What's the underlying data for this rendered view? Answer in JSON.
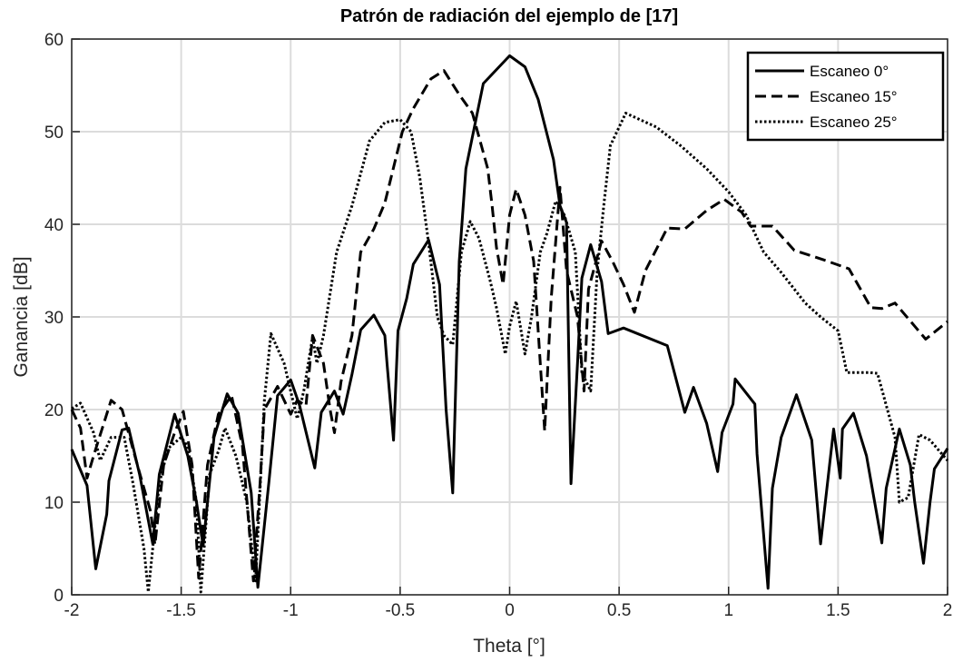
{
  "chart_data": {
    "type": "line",
    "title": "Patrón de radiación del ejemplo de [17]",
    "xlabel": "Theta [°]",
    "ylabel": "Ganancia [dB]",
    "xlim": [
      -2,
      2
    ],
    "xticks": [
      -2,
      -1.5,
      -1,
      -0.5,
      0,
      0.5,
      1,
      1.5,
      2
    ],
    "ylim": [
      0,
      60
    ],
    "yticks": [
      0,
      10,
      20,
      30,
      40,
      50,
      60
    ],
    "grid": true,
    "legend": "upper right",
    "series": [
      {
        "name": "Escaneo 0°",
        "color": "#000000",
        "linestyle": "solid",
        "x": [
          -2,
          -1.93,
          -1.89,
          -1.84,
          -1.83,
          -1.77,
          -1.74,
          -1.69,
          -1.63,
          -1.6,
          -1.53,
          -1.47,
          -1.43,
          -1.4,
          -1.35,
          -1.29,
          -1.24,
          -1.18,
          -1.15,
          -1.1,
          -1.06,
          -1,
          -0.96,
          -0.89,
          -0.86,
          -0.8,
          -0.76,
          -0.72,
          -0.68,
          -0.62,
          -0.57,
          -0.56,
          -0.53,
          -0.51,
          -0.47,
          -0.44,
          -0.37,
          -0.32,
          -0.29,
          -0.26,
          -0.23,
          -0.2,
          -0.12,
          0,
          0.07,
          0.13,
          0.2,
          0.23,
          0.26,
          0.28,
          0.31,
          0.33,
          0.37,
          0.42,
          0.45,
          0.52,
          0.72,
          0.8,
          0.84,
          0.9,
          0.95,
          0.97,
          1.02,
          1.03,
          1.12,
          1.13,
          1.18,
          1.2,
          1.24,
          1.31,
          1.38,
          1.42,
          1.48,
          1.51,
          1.52,
          1.57,
          1.63,
          1.7,
          1.72,
          1.78,
          1.83,
          1.85,
          1.89,
          1.92,
          1.94,
          2
        ],
        "values": [
          15.7,
          11.8,
          2.8,
          8.7,
          12.3,
          17.8,
          18,
          13,
          5.5,
          13,
          19.5,
          15,
          10,
          5.3,
          17,
          21.7,
          19.6,
          11,
          0.8,
          12,
          21.5,
          23.2,
          20.5,
          13.7,
          19.7,
          22,
          19.5,
          23.8,
          28.6,
          30.2,
          28,
          25,
          16.7,
          28.5,
          32,
          35.7,
          38.3,
          33.5,
          20,
          11,
          36,
          46,
          55.2,
          58.2,
          57,
          53.5,
          47,
          42,
          40.2,
          12,
          25,
          34.2,
          37.8,
          33.8,
          28.2,
          28.8,
          26.9,
          19.7,
          22.4,
          18.5,
          13.3,
          17.5,
          20.6,
          23.3,
          20.6,
          15.2,
          0.7,
          11.5,
          17,
          21.6,
          16.7,
          5.5,
          17.9,
          12.6,
          17.9,
          19.6,
          15,
          5.6,
          11.5,
          17.9,
          14,
          10,
          3.4,
          10,
          13.6,
          15.8
        ]
      },
      {
        "name": "Escaneo 15°",
        "color": "#000000",
        "linestyle": "dashed",
        "x": [
          -2,
          -1.96,
          -1.93,
          -1.9,
          -1.82,
          -1.77,
          -1.7,
          -1.64,
          -1.62,
          -1.58,
          -1.53,
          -1.49,
          -1.45,
          -1.42,
          -1.38,
          -1.33,
          -1.27,
          -1.22,
          -1.17,
          -1.14,
          -1.12,
          -1.06,
          -1,
          -0.97,
          -0.93,
          -0.9,
          -0.85,
          -0.82,
          -0.8,
          -0.77,
          -0.72,
          -0.68,
          -0.62,
          -0.57,
          -0.49,
          -0.44,
          -0.36,
          -0.3,
          -0.23,
          -0.17,
          -0.1,
          -0.08,
          -0.06,
          -0.03,
          0,
          0.03,
          0.07,
          0.11,
          0.16,
          0.19,
          0.23,
          0.26,
          0.31,
          0.34,
          0.36,
          0.42,
          0.47,
          0.52,
          0.57,
          0.62,
          0.72,
          0.8,
          0.9,
          0.98,
          1.06,
          1.1,
          1.2,
          1.3,
          1.43,
          1.55,
          1.65,
          1.7,
          1.76,
          1.85,
          1.9,
          2
        ],
        "values": [
          20,
          18,
          12.6,
          15,
          21,
          20,
          14,
          9,
          5.4,
          14,
          17.5,
          19.8,
          14,
          1.8,
          14,
          19.5,
          21.5,
          16,
          1.5,
          12,
          20,
          22.5,
          19.5,
          21,
          20.4,
          28,
          25,
          20,
          17.5,
          23,
          28,
          37,
          39.5,
          42.3,
          50,
          52.5,
          55.7,
          56.6,
          54,
          52,
          46,
          42,
          37.5,
          33.5,
          41,
          43.8,
          41,
          36,
          17.7,
          32,
          44,
          35,
          30,
          22,
          33,
          38.2,
          36,
          33.5,
          30.5,
          35,
          39.6,
          39.5,
          41.5,
          42.7,
          41.3,
          39.8,
          39.8,
          37.2,
          36.2,
          35.2,
          31,
          30.9,
          31.5,
          29,
          27.6,
          29.5
        ]
      },
      {
        "name": "Escaneo 25°",
        "color": "#000000",
        "linestyle": "dotted",
        "x": [
          -2,
          -1.96,
          -1.9,
          -1.87,
          -1.82,
          -1.76,
          -1.72,
          -1.67,
          -1.65,
          -1.6,
          -1.56,
          -1.5,
          -1.47,
          -1.43,
          -1.41,
          -1.37,
          -1.33,
          -1.3,
          -1.25,
          -1.2,
          -1.16,
          -1.12,
          -1.09,
          -1.03,
          -0.97,
          -0.94,
          -0.9,
          -0.88,
          -0.85,
          -0.79,
          -0.72,
          -0.64,
          -0.57,
          -0.5,
          -0.45,
          -0.41,
          -0.37,
          -0.33,
          -0.3,
          -0.26,
          -0.22,
          -0.18,
          -0.14,
          -0.09,
          -0.06,
          -0.02,
          0,
          0.03,
          0.07,
          0.1,
          0.14,
          0.17,
          0.21,
          0.25,
          0.3,
          0.33,
          0.37,
          0.4,
          0.43,
          0.46,
          0.53,
          0.67,
          0.78,
          0.9,
          1,
          1.08,
          1.16,
          1.24,
          1.35,
          1.42,
          1.5,
          1.54,
          1.64,
          1.68,
          1.76,
          1.78,
          1.82,
          1.87,
          1.92,
          2
        ],
        "values": [
          20.1,
          20.7,
          17.5,
          14.5,
          17,
          17,
          12,
          5,
          0.3,
          12,
          15.8,
          17,
          16,
          10,
          0.3,
          13,
          15.5,
          18,
          15,
          10,
          1.5,
          21,
          28.2,
          25,
          19,
          22,
          27.8,
          25,
          28,
          37,
          42,
          49,
          51,
          51.3,
          50,
          45,
          38,
          30,
          28,
          27,
          37,
          40.3,
          38.5,
          34,
          31,
          26,
          29,
          31.7,
          26,
          30,
          37,
          39,
          42.5,
          41,
          37,
          24,
          22,
          35,
          42,
          48.5,
          52,
          50.5,
          48.5,
          46,
          43.5,
          41,
          37,
          34.8,
          31.5,
          30,
          28.5,
          24,
          24,
          23.9,
          17,
          10,
          10.5,
          17.3,
          16.7,
          14.5
        ]
      }
    ]
  }
}
